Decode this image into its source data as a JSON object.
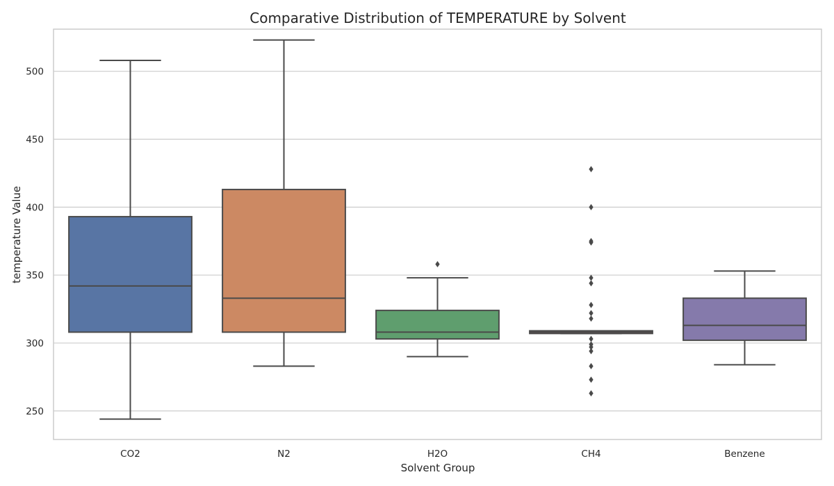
{
  "chart_data": {
    "type": "box",
    "title": "Comparative Distribution of TEMPERATURE by Solvent",
    "xlabel": "Solvent Group",
    "ylabel": "temperature Value",
    "ylim": [
      229,
      531
    ],
    "yticks": [
      250,
      300,
      350,
      400,
      450,
      500
    ],
    "grid": true,
    "categories": [
      "CO2",
      "N2",
      "H2O",
      "CH4",
      "Benzene"
    ],
    "colors": [
      "#5875a4",
      "#cc8963",
      "#5f9e6e",
      "#b55d60",
      "#857aab"
    ],
    "boxes": [
      {
        "category": "CO2",
        "whisker_low": 244,
        "q1": 308,
        "median": 342,
        "q3": 393,
        "whisker_high": 508,
        "outliers": []
      },
      {
        "category": "N2",
        "whisker_low": 283,
        "q1": 308,
        "median": 333,
        "q3": 413,
        "whisker_high": 523,
        "outliers": []
      },
      {
        "category": "H2O",
        "whisker_low": 290,
        "q1": 303,
        "median": 308,
        "q3": 324,
        "whisker_high": 348,
        "outliers": [
          358
        ]
      },
      {
        "category": "CH4",
        "whisker_low": 307,
        "q1": 307,
        "median": 308,
        "q3": 309,
        "whisker_high": 309,
        "outliers": [
          428,
          400,
          375,
          374,
          348,
          344,
          328,
          322,
          318,
          303,
          299,
          297,
          294,
          283,
          273,
          263
        ]
      },
      {
        "category": "Benzene",
        "whisker_low": 284,
        "q1": 302,
        "median": 313,
        "q3": 333,
        "whisker_high": 353,
        "outliers": []
      }
    ]
  }
}
